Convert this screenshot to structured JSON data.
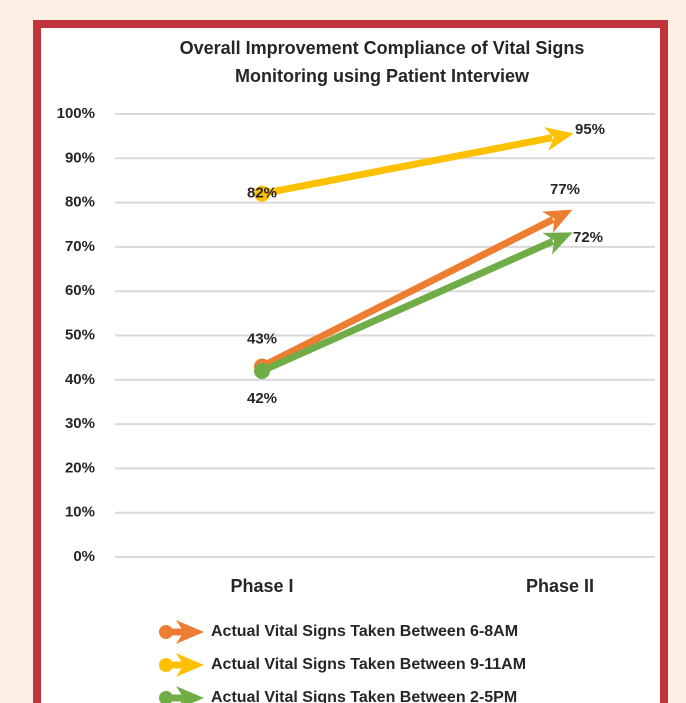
{
  "chart_data": {
    "type": "line",
    "title": [
      "Overall Improvement Compliance of Vital Signs",
      "Monitoring using Patient Interview"
    ],
    "categories": [
      "Phase I",
      "Phase II"
    ],
    "series": [
      {
        "name": "Actual Vital Signs Taken Between 6-8AM",
        "color": "#ed7d31",
        "values": [
          43,
          77
        ],
        "value_labels": [
          "43%",
          "77%"
        ]
      },
      {
        "name": "Actual Vital Signs Taken Between 9-11AM",
        "color": "#ffc000",
        "values": [
          82,
          95
        ],
        "value_labels": [
          "82%",
          "95%"
        ]
      },
      {
        "name": "Actual Vital Signs Taken Between 2-5PM",
        "color": "#70ad47",
        "values": [
          42,
          72
        ],
        "value_labels": [
          "42%",
          "72%"
        ]
      }
    ],
    "ylim": [
      0,
      100
    ],
    "yticks": [
      {
        "value": 0,
        "label": "0%"
      },
      {
        "value": 10,
        "label": "10%"
      },
      {
        "value": 20,
        "label": "20%"
      },
      {
        "value": 30,
        "label": "30%"
      },
      {
        "value": 40,
        "label": "40%"
      },
      {
        "value": 50,
        "label": "50%"
      },
      {
        "value": 60,
        "label": "60%"
      },
      {
        "value": 70,
        "label": "70%"
      },
      {
        "value": 80,
        "label": "80%"
      },
      {
        "value": 90,
        "label": "90%"
      },
      {
        "value": 100,
        "label": "100%"
      }
    ],
    "grid": true,
    "legend": "bottom"
  }
}
